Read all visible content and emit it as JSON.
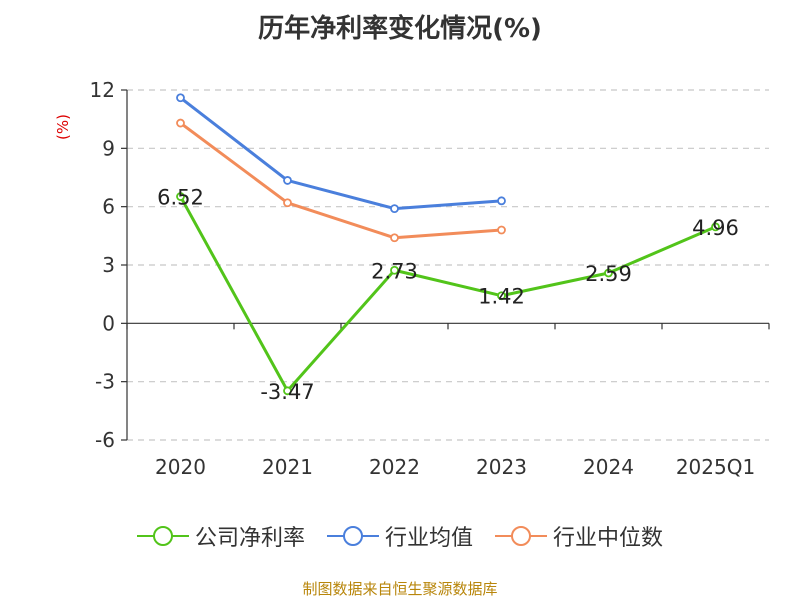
{
  "title": "历年净利率变化情况(%)",
  "source": "制图数据来自恒生聚源数据库",
  "chart_data": {
    "type": "line",
    "title": "历年净利率变化情况(%)",
    "ylabel": "(%)",
    "xlabel": "",
    "categories": [
      "2020",
      "2021",
      "2022",
      "2023",
      "2024",
      "2025Q1"
    ],
    "ylim": [
      -6,
      12
    ],
    "yticks": [
      -6,
      -3,
      0,
      3,
      6,
      9,
      12
    ],
    "grid": true,
    "legend_position": "bottom",
    "series": [
      {
        "name": "公司净利率",
        "color": "#52c41a",
        "values": [
          6.52,
          -3.47,
          2.73,
          1.42,
          2.59,
          4.96
        ],
        "labels": [
          "6.52",
          "-3.47",
          "2.73",
          "1.42",
          "2.59",
          "4.96"
        ]
      },
      {
        "name": "行业均值",
        "color": "#4a7fdc",
        "values": [
          11.6,
          7.35,
          5.9,
          6.3,
          null,
          null
        ]
      },
      {
        "name": "行业中位数",
        "color": "#f28c5a",
        "values": [
          10.3,
          6.2,
          4.4,
          4.8,
          null,
          null
        ]
      }
    ]
  }
}
